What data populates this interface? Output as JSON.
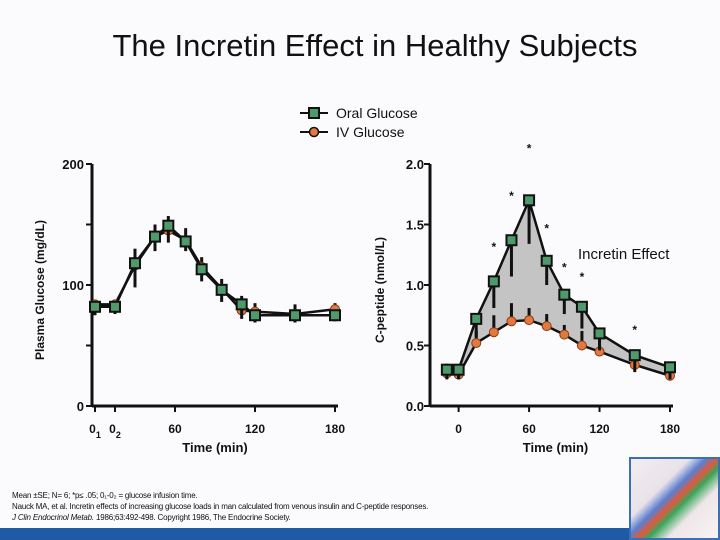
{
  "title": "The Incretin Effect in Healthy Subjects",
  "legend": [
    {
      "label": "Oral Glucose",
      "color": "#4f9a6a",
      "marker": "square"
    },
    {
      "label": "IV Glucose",
      "color": "#e07a40",
      "marker": "circle"
    }
  ],
  "chart_data": [
    {
      "type": "line",
      "ylabel": "Plasma Glucose (mg/dL)",
      "xlabel": "Time (min)",
      "ylim": [
        0,
        200
      ],
      "yticks": [
        {
          "v": 0,
          "label": "0"
        },
        {
          "v": 50,
          "label": ""
        },
        {
          "v": 100,
          "label": "100"
        },
        {
          "v": 150,
          "label": ""
        },
        {
          "v": 200,
          "label": "200"
        }
      ],
      "xlim": [
        0,
        180
      ],
      "xticks": [
        {
          "v": 0,
          "label": "0",
          "sub": "1"
        },
        {
          "v": 15,
          "label": "0",
          "sub": "2"
        },
        {
          "v": 60,
          "label": "60"
        },
        {
          "v": 120,
          "label": "120"
        },
        {
          "v": 180,
          "label": "180"
        }
      ],
      "x": [
        0,
        15,
        30,
        45,
        55,
        68,
        80,
        95,
        110,
        120,
        150,
        180
      ],
      "series": [
        {
          "name": "Oral Glucose",
          "values": [
            82,
            82,
            118,
            140,
            149,
            136,
            113,
            96,
            84,
            75,
            75,
            75
          ],
          "err": [
            7,
            6,
            20,
            12,
            14,
            8,
            10,
            10,
            12,
            6,
            6,
            5
          ]
        },
        {
          "name": "IV Glucose",
          "values": [
            84,
            84,
            116,
            140,
            145,
            137,
            115,
            97,
            79,
            78,
            76,
            80
          ],
          "err": [
            4,
            4,
            14,
            10,
            12,
            10,
            8,
            8,
            12,
            7,
            8,
            5
          ]
        }
      ]
    },
    {
      "type": "line",
      "ylabel": "C-peptide (nmol/L)",
      "xlabel": "Time (min)",
      "ylim": [
        0,
        2.0
      ],
      "yticks": [
        {
          "v": 0,
          "label": "0.0"
        },
        {
          "v": 0.5,
          "label": "0.5"
        },
        {
          "v": 1.0,
          "label": "1.0"
        },
        {
          "v": 1.5,
          "label": "1.5"
        },
        {
          "v": 2.0,
          "label": "2.0"
        }
      ],
      "xlim": [
        -15,
        180
      ],
      "xticks": [
        {
          "v": 0,
          "label": "0"
        },
        {
          "v": 60,
          "label": "60"
        },
        {
          "v": 120,
          "label": "120"
        },
        {
          "v": 180,
          "label": "180"
        }
      ],
      "x": [
        -10,
        0,
        15,
        30,
        45,
        60,
        75,
        90,
        105,
        120,
        150,
        180
      ],
      "series": [
        {
          "name": "Oral Glucose",
          "values": [
            0.3,
            0.3,
            0.72,
            1.03,
            1.37,
            1.7,
            1.2,
            0.92,
            0.82,
            0.6,
            0.42,
            0.32
          ],
          "err": [
            0.08,
            0.08,
            0.15,
            0.22,
            0.3,
            0.36,
            0.2,
            0.16,
            0.18,
            0.14,
            0.14,
            0.1
          ]
        },
        {
          "name": "IV Glucose",
          "values": [
            0.27,
            0.26,
            0.52,
            0.61,
            0.7,
            0.71,
            0.66,
            0.59,
            0.5,
            0.45,
            0.34,
            0.25
          ],
          "err": [
            0.08,
            0.08,
            0.1,
            0.14,
            0.15,
            0.1,
            0.1,
            0.08,
            0.12,
            0.1,
            0.1,
            0.07
          ]
        }
      ],
      "significant": [
        3,
        4,
        5,
        6,
        7,
        8,
        10
      ],
      "significance_marker": "*",
      "annotation": "Incretin Effect",
      "shaded_between_series": true
    }
  ],
  "footnote": {
    "line1": "Mean ±SE; N= 6; *p≤ .05; 0₁-0₂ = glucose infusion time.",
    "line2": "Nauck MA, et al. Incretin effects of increasing glucose loads in man calculated from venous insulin and C-peptide responses.",
    "line3_italic": "J Clin Endocrinol Metab.",
    "line3_rest": " 1986;63:492-498. Copyright 1986, The Endocrine Society."
  }
}
